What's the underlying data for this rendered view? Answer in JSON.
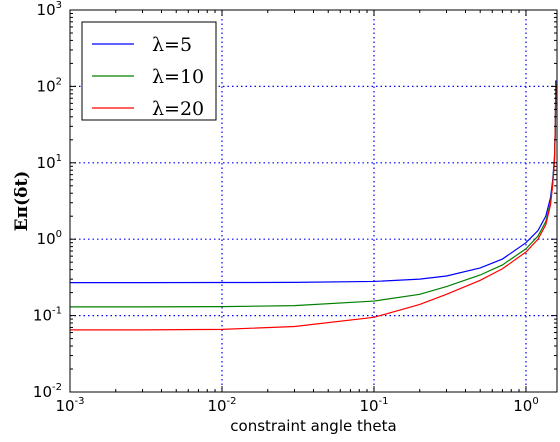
{
  "chart_data": {
    "type": "line",
    "title": "",
    "xlabel": "constraint angle theta",
    "ylabel": "Eπ(δt)",
    "x_scale": "log",
    "y_scale": "log",
    "xlim": [
      0.001,
      1.6
    ],
    "ylim": [
      0.01,
      1000
    ],
    "grid": true,
    "legend_position": "top-left",
    "x_ticks": [
      {
        "value": 0.001,
        "base": "10",
        "exp": "-3"
      },
      {
        "value": 0.01,
        "base": "10",
        "exp": "-2"
      },
      {
        "value": 0.1,
        "base": "10",
        "exp": "-1"
      },
      {
        "value": 1,
        "base": "10",
        "exp": "0"
      }
    ],
    "y_ticks": [
      {
        "value": 0.01,
        "base": "10",
        "exp": "-2"
      },
      {
        "value": 0.1,
        "base": "10",
        "exp": "-1"
      },
      {
        "value": 1,
        "base": "10",
        "exp": "0"
      },
      {
        "value": 10,
        "base": "10",
        "exp": "1"
      },
      {
        "value": 100,
        "base": "10",
        "exp": "2"
      },
      {
        "value": 1000,
        "base": "10",
        "exp": "3"
      }
    ],
    "series": [
      {
        "name": "λ=5",
        "color": "#0000ff",
        "x": [
          0.001,
          0.003,
          0.01,
          0.03,
          0.1,
          0.2,
          0.3,
          0.5,
          0.7,
          1.0,
          1.2,
          1.35,
          1.45,
          1.5,
          1.54,
          1.56,
          1.57
        ],
        "y": [
          0.27,
          0.27,
          0.271,
          0.272,
          0.28,
          0.3,
          0.33,
          0.42,
          0.55,
          0.9,
          1.3,
          2.0,
          3.5,
          6.0,
          12,
          30,
          120
        ]
      },
      {
        "name": "λ=10",
        "color": "#008000",
        "x": [
          0.001,
          0.003,
          0.01,
          0.03,
          0.1,
          0.2,
          0.3,
          0.5,
          0.7,
          1.0,
          1.2,
          1.35,
          1.45,
          1.5,
          1.54,
          1.56,
          1.57
        ],
        "y": [
          0.13,
          0.13,
          0.131,
          0.135,
          0.155,
          0.19,
          0.24,
          0.34,
          0.46,
          0.75,
          1.1,
          1.7,
          3.0,
          5.5,
          11,
          28,
          110
        ]
      },
      {
        "name": "λ=20",
        "color": "#ff0000",
        "x": [
          0.001,
          0.003,
          0.01,
          0.03,
          0.1,
          0.2,
          0.3,
          0.5,
          0.7,
          1.0,
          1.2,
          1.35,
          1.45,
          1.5,
          1.54,
          1.56,
          1.57
        ],
        "y": [
          0.065,
          0.065,
          0.066,
          0.072,
          0.095,
          0.14,
          0.19,
          0.29,
          0.41,
          0.68,
          1.0,
          1.55,
          2.8,
          5.2,
          10.5,
          27,
          105
        ]
      }
    ]
  }
}
